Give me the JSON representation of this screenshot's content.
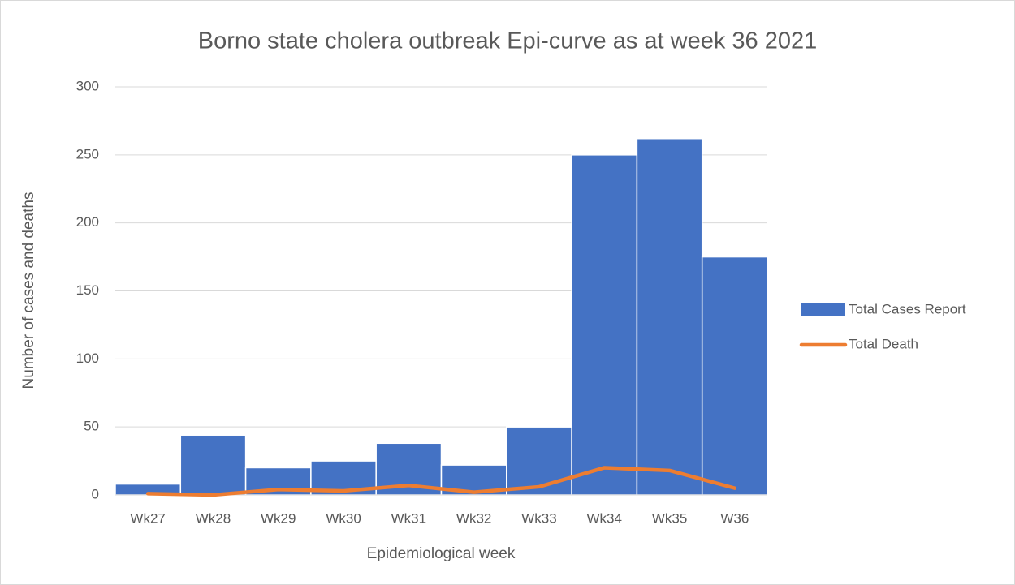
{
  "chart_data": {
    "type": "bar",
    "title": "Borno state cholera outbreak Epi-curve as at week 36 2021",
    "x_label": "Epidemiological week",
    "y_label": "Number of cases and deaths",
    "categories": [
      "Wk27",
      "Wk28",
      "Wk29",
      "Wk30",
      "Wk31",
      "Wk32",
      "Wk33",
      "Wk34",
      "Wk35",
      "W36"
    ],
    "series": [
      {
        "name": "Total Cases Report",
        "type": "bar",
        "color": "#4472c4",
        "values": [
          8,
          44,
          20,
          25,
          38,
          22,
          50,
          250,
          262,
          175
        ]
      },
      {
        "name": "Total Death",
        "type": "line",
        "color": "#ed7d31",
        "values": [
          1,
          0,
          4,
          3,
          7,
          2,
          6,
          20,
          18,
          5
        ]
      }
    ],
    "ylim": [
      0,
      300
    ],
    "yticks": [
      0,
      50,
      100,
      150,
      200,
      250,
      300
    ],
    "grid": true,
    "legend": "right"
  }
}
